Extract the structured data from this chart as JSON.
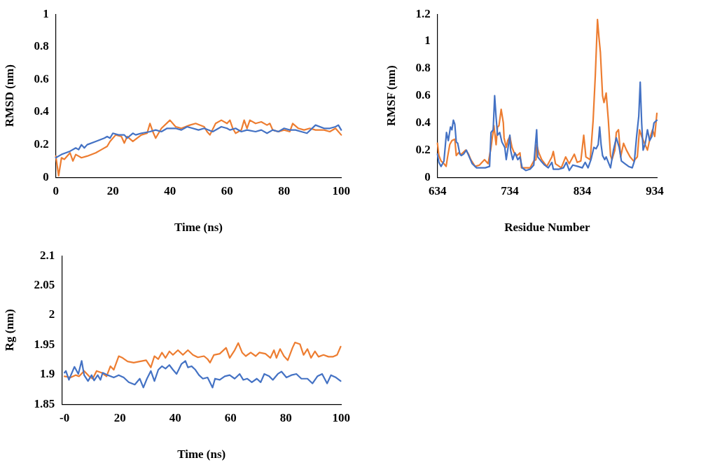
{
  "chart_data": [
    {
      "type": "line",
      "xlabel": "Time (ns)",
      "ylabel": "RMSD (nm)",
      "xlim": [
        0,
        100
      ],
      "ylim": [
        0,
        1
      ],
      "xticks": [
        0,
        20,
        40,
        60,
        80,
        100
      ],
      "yticks": [
        0,
        0.2,
        0.4,
        0.6,
        0.8,
        1
      ],
      "grid": false,
      "legend": false,
      "marker": "none",
      "line_style": "solid",
      "series": [
        {
          "color": "#4472c4",
          "x": [
            0,
            2,
            5,
            7,
            8,
            9,
            10,
            11,
            14,
            17,
            18,
            19,
            20,
            22,
            24,
            25,
            27,
            28,
            30,
            33,
            35,
            37,
            39,
            42,
            44,
            46,
            48,
            50,
            52,
            55,
            58,
            60,
            61,
            63,
            65,
            67,
            70,
            72,
            74,
            76,
            78,
            80,
            82,
            84,
            86,
            88,
            91,
            94,
            96,
            98,
            99,
            100
          ],
          "values": [
            0.12,
            0.14,
            0.16,
            0.18,
            0.17,
            0.2,
            0.18,
            0.2,
            0.22,
            0.24,
            0.25,
            0.24,
            0.27,
            0.26,
            0.26,
            0.24,
            0.27,
            0.26,
            0.27,
            0.28,
            0.29,
            0.28,
            0.3,
            0.3,
            0.29,
            0.31,
            0.3,
            0.29,
            0.3,
            0.28,
            0.31,
            0.3,
            0.29,
            0.3,
            0.28,
            0.29,
            0.28,
            0.29,
            0.27,
            0.29,
            0.28,
            0.3,
            0.29,
            0.29,
            0.28,
            0.27,
            0.32,
            0.3,
            0.3,
            0.31,
            0.32,
            0.29
          ]
        },
        {
          "color": "#ed7d31",
          "x": [
            0,
            1,
            2,
            3,
            5,
            6,
            7,
            9,
            11,
            14,
            16,
            18,
            19,
            21,
            23,
            24,
            25,
            27,
            30,
            32,
            33,
            34,
            35,
            37,
            40,
            42,
            44,
            47,
            49,
            52,
            53,
            54,
            56,
            58,
            60,
            61,
            62,
            63,
            65,
            66,
            67,
            68,
            70,
            72,
            74,
            75,
            76,
            78,
            80,
            82,
            83,
            85,
            87,
            89,
            91,
            94,
            96,
            98,
            100
          ],
          "values": [
            0.13,
            0.01,
            0.12,
            0.11,
            0.15,
            0.1,
            0.14,
            0.12,
            0.13,
            0.15,
            0.17,
            0.19,
            0.22,
            0.26,
            0.25,
            0.21,
            0.25,
            0.22,
            0.26,
            0.27,
            0.33,
            0.28,
            0.24,
            0.3,
            0.35,
            0.31,
            0.3,
            0.32,
            0.33,
            0.31,
            0.28,
            0.26,
            0.33,
            0.35,
            0.33,
            0.35,
            0.3,
            0.27,
            0.29,
            0.35,
            0.3,
            0.35,
            0.33,
            0.34,
            0.32,
            0.33,
            0.29,
            0.28,
            0.29,
            0.28,
            0.33,
            0.3,
            0.29,
            0.3,
            0.29,
            0.29,
            0.28,
            0.3,
            0.26
          ]
        }
      ]
    },
    {
      "type": "line",
      "xlabel": "Residue Number",
      "ylabel": "RMSF (nm)",
      "xlim": [
        634,
        937
      ],
      "ylim": [
        0,
        1.2
      ],
      "xticks": [
        634,
        734,
        834,
        934
      ],
      "yticks": [
        0,
        0.2,
        0.4,
        0.6,
        0.8,
        1,
        1.2
      ],
      "grid": false,
      "legend": false,
      "marker": "none",
      "line_style": "solid",
      "series": [
        {
          "color": "#4472c4",
          "x": [
            634,
            636,
            639,
            643,
            646.5,
            649,
            652,
            654,
            656,
            658,
            660,
            662,
            665,
            667,
            670,
            674,
            678,
            682,
            688,
            693,
            700,
            706,
            708,
            711,
            713,
            715,
            717,
            720,
            723,
            727,
            729,
            731,
            734,
            735,
            738,
            741,
            745,
            748,
            751,
            756,
            762,
            767,
            771,
            772.5,
            777,
            782,
            787,
            792,
            794,
            802,
            808,
            812,
            816,
            821,
            828,
            834,
            838,
            842,
            846,
            850,
            853,
            856,
            858,
            860,
            862,
            865,
            867,
            870,
            873,
            877,
            881,
            885,
            888,
            893,
            898,
            903,
            906,
            909,
            912,
            914,
            916,
            918,
            921,
            924,
            927,
            930,
            933,
            937
          ],
          "values": [
            0.17,
            0.11,
            0.08,
            0.12,
            0.33,
            0.27,
            0.37,
            0.35,
            0.42,
            0.39,
            0.26,
            0.25,
            0.17,
            0.16,
            0.17,
            0.2,
            0.15,
            0.1,
            0.07,
            0.07,
            0.07,
            0.08,
            0.33,
            0.35,
            0.6,
            0.44,
            0.31,
            0.33,
            0.26,
            0.22,
            0.13,
            0.2,
            0.31,
            0.2,
            0.13,
            0.18,
            0.13,
            0.15,
            0.07,
            0.05,
            0.06,
            0.09,
            0.35,
            0.15,
            0.12,
            0.09,
            0.07,
            0.11,
            0.06,
            0.06,
            0.07,
            0.11,
            0.05,
            0.09,
            0.08,
            0.07,
            0.11,
            0.07,
            0.13,
            0.22,
            0.21,
            0.24,
            0.37,
            0.24,
            0.16,
            0.13,
            0.15,
            0.11,
            0.07,
            0.2,
            0.29,
            0.22,
            0.12,
            0.1,
            0.08,
            0.07,
            0.12,
            0.3,
            0.45,
            0.7,
            0.4,
            0.2,
            0.25,
            0.35,
            0.27,
            0.3,
            0.4,
            0.42
          ]
        },
        {
          "color": "#ed7d31",
          "x": [
            634,
            636,
            639,
            643,
            646,
            648,
            651,
            654,
            658,
            660,
            663,
            667,
            673,
            677,
            680,
            686,
            692,
            699,
            704,
            708,
            709,
            712,
            715,
            717,
            719,
            722,
            725,
            726,
            729,
            731,
            734,
            737,
            740,
            744,
            748,
            750,
            756,
            762,
            767,
            770,
            771,
            774,
            778,
            785,
            792,
            794,
            797,
            805,
            811,
            816,
            823,
            827,
            832,
            836,
            839,
            845,
            849,
            852,
            855,
            857,
            859,
            862,
            864,
            867,
            870,
            873,
            875,
            879,
            881,
            884,
            887,
            891,
            895,
            900,
            905,
            910,
            913,
            916,
            920,
            924,
            928,
            931,
            934,
            937
          ],
          "values": [
            0.25,
            0.16,
            0.12,
            0.1,
            0.08,
            0.15,
            0.24,
            0.27,
            0.28,
            0.16,
            0.18,
            0.17,
            0.2,
            0.17,
            0.13,
            0.08,
            0.09,
            0.13,
            0.1,
            0.22,
            0.26,
            0.38,
            0.24,
            0.37,
            0.38,
            0.5,
            0.4,
            0.29,
            0.22,
            0.27,
            0.3,
            0.22,
            0.18,
            0.16,
            0.18,
            0.07,
            0.07,
            0.07,
            0.12,
            0.13,
            0.24,
            0.18,
            0.13,
            0.08,
            0.15,
            0.19,
            0.1,
            0.07,
            0.15,
            0.1,
            0.17,
            0.11,
            0.12,
            0.31,
            0.15,
            0.13,
            0.42,
            0.75,
            1.16,
            1.03,
            0.92,
            0.6,
            0.55,
            0.62,
            0.42,
            0.16,
            0.13,
            0.2,
            0.33,
            0.35,
            0.15,
            0.25,
            0.2,
            0.15,
            0.12,
            0.15,
            0.35,
            0.3,
            0.25,
            0.2,
            0.3,
            0.35,
            0.3,
            0.47
          ]
        }
      ]
    },
    {
      "type": "line",
      "xlabel": "Time (ns)",
      "ylabel": "Rg (nm)",
      "xlim": [
        -1,
        100
      ],
      "ylim": [
        1.85,
        2.1
      ],
      "xticks": [
        {
          "value": 0,
          "label": "-0"
        },
        20,
        40,
        60,
        80,
        100
      ],
      "yticks": [
        1.85,
        1.9,
        1.95,
        2,
        2.05,
        2.1
      ],
      "grid": false,
      "legend": false,
      "marker": "none",
      "line_style": "solid",
      "series": [
        {
          "color": "#4472c4",
          "x": [
            0,
            0.5,
            1.6,
            3.6,
            5,
            6.2,
            7.1,
            8.5,
            9.8,
            10.7,
            12,
            13,
            13.8,
            15.6,
            17.8,
            19.6,
            21.4,
            23.2,
            25.4,
            27.2,
            28.5,
            29.8,
            31.2,
            32.5,
            33.9,
            35.2,
            36.5,
            37.9,
            39.2,
            40.5,
            42.3,
            43.7,
            44.6,
            45.9,
            47.3,
            48.6,
            50,
            51.7,
            53.5,
            54.4,
            56.1,
            57.9,
            59.7,
            61.5,
            63.3,
            64.6,
            66,
            67.7,
            69.5,
            70.9,
            72.2,
            74,
            75.3,
            77.1,
            78.4,
            80.2,
            82,
            83.8,
            85.6,
            87.8,
            89.6,
            91.4,
            93.1,
            94.9,
            96.3,
            98.1,
            99.8
          ],
          "values": [
            1.903,
            1.906,
            1.891,
            1.913,
            1.901,
            1.923,
            1.899,
            1.889,
            1.899,
            1.89,
            1.899,
            1.891,
            1.903,
            1.899,
            1.895,
            1.899,
            1.895,
            1.887,
            1.883,
            1.893,
            1.878,
            1.893,
            1.906,
            1.889,
            1.908,
            1.914,
            1.91,
            1.916,
            1.908,
            1.901,
            1.918,
            1.923,
            1.912,
            1.914,
            1.908,
            1.899,
            1.893,
            1.895,
            1.878,
            1.893,
            1.891,
            1.897,
            1.899,
            1.893,
            1.901,
            1.891,
            1.893,
            1.887,
            1.893,
            1.887,
            1.901,
            1.897,
            1.891,
            1.901,
            1.905,
            1.895,
            1.899,
            1.901,
            1.893,
            1.893,
            1.885,
            1.897,
            1.901,
            1.885,
            1.899,
            1.895,
            1.889
          ]
        },
        {
          "color": "#ed7d31",
          "x": [
            0,
            2.2,
            4,
            5.3,
            7.1,
            8.9,
            10.2,
            11.6,
            13.4,
            15.2,
            16.6,
            17.8,
            19.6,
            21,
            22.8,
            25,
            27.2,
            29.5,
            31.2,
            32.5,
            33.9,
            35.2,
            36.5,
            37.9,
            39.2,
            41,
            42.8,
            44.6,
            46.4,
            48.2,
            50.4,
            51.7,
            52.6,
            54,
            56.1,
            58.4,
            59.7,
            61.5,
            62.8,
            64.2,
            65.5,
            67.3,
            69.1,
            70.4,
            72.6,
            74.4,
            75.7,
            76.6,
            77.9,
            79.3,
            80.7,
            82.4,
            83.3,
            85.1,
            86.4,
            87.8,
            89.1,
            90.5,
            91.8,
            93.6,
            95.4,
            97.1,
            98.5,
            99.8
          ],
          "values": [
            1.897,
            1.895,
            1.899,
            1.897,
            1.906,
            1.897,
            1.893,
            1.906,
            1.903,
            1.897,
            1.914,
            1.908,
            1.931,
            1.928,
            1.922,
            1.92,
            1.922,
            1.924,
            1.912,
            1.931,
            1.926,
            1.937,
            1.928,
            1.939,
            1.933,
            1.941,
            1.933,
            1.941,
            1.933,
            1.929,
            1.931,
            1.926,
            1.92,
            1.933,
            1.935,
            1.945,
            1.928,
            1.941,
            1.953,
            1.937,
            1.931,
            1.937,
            1.931,
            1.937,
            1.935,
            1.928,
            1.941,
            1.928,
            1.943,
            1.931,
            1.924,
            1.945,
            1.954,
            1.951,
            1.933,
            1.943,
            1.928,
            1.939,
            1.93,
            1.933,
            1.93,
            1.93,
            1.933,
            1.947
          ]
        }
      ]
    }
  ]
}
